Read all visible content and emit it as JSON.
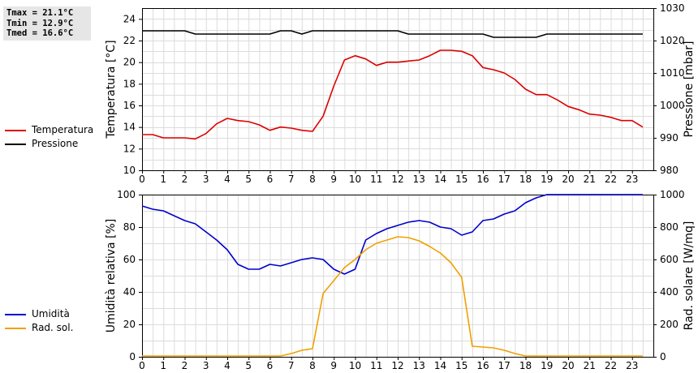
{
  "stats": {
    "tmax": "Tmax = 21.1°C",
    "tmin": "Tmin = 12.9°C",
    "tmed": "Tmed = 16.6°C"
  },
  "legend_top": [
    {
      "label": "Temperatura",
      "color": "#dd0000"
    },
    {
      "label": "Pressione",
      "color": "#000000"
    }
  ],
  "legend_bottom": [
    {
      "label": "Umidità",
      "color": "#0000cc"
    },
    {
      "label": "Rad. sol.",
      "color": "#f0a000"
    }
  ],
  "chart_data": [
    {
      "type": "line",
      "ylabel": "Temperatura [°C]",
      "y2label": "Pressione [mbar]",
      "xlim": [
        0,
        24
      ],
      "ylim": [
        10,
        25
      ],
      "y2lim": [
        980,
        1030
      ],
      "xticks": [
        "0",
        "1",
        "2",
        "3",
        "4",
        "5",
        "6",
        "7",
        "8",
        "9",
        "10",
        "11",
        "12",
        "13",
        "14",
        "15",
        "16",
        "17",
        "18",
        "19",
        "20",
        "21",
        "22",
        "23"
      ],
      "yticks": [
        "10",
        "12",
        "14",
        "16",
        "18",
        "20",
        "22",
        "24"
      ],
      "y2ticks": [
        "980",
        "990",
        "1000",
        "1010",
        "1020",
        "1030"
      ],
      "grid": true,
      "series": [
        {
          "name": "Temperatura",
          "axis": "left",
          "color": "#dd0000",
          "x": [
            0,
            0.5,
            1,
            1.5,
            2,
            2.5,
            3,
            3.5,
            4,
            4.5,
            5,
            5.5,
            6,
            6.5,
            7,
            7.5,
            8,
            8.5,
            9,
            9.5,
            10,
            10.5,
            11,
            11.5,
            12,
            12.5,
            13,
            13.5,
            14,
            14.5,
            15,
            15.5,
            16,
            16.5,
            17,
            17.5,
            18,
            18.5,
            19,
            19.5,
            20,
            20.5,
            21,
            21.5,
            22,
            22.5,
            23,
            23.5
          ],
          "y": [
            13.3,
            13.3,
            13.0,
            13.0,
            13.0,
            12.9,
            13.4,
            14.3,
            14.8,
            14.6,
            14.5,
            14.2,
            13.7,
            14.0,
            13.9,
            13.7,
            13.6,
            15.0,
            17.8,
            20.2,
            20.6,
            20.3,
            19.7,
            20.0,
            20.0,
            20.1,
            20.2,
            20.6,
            21.1,
            21.1,
            21.0,
            20.6,
            19.5,
            19.3,
            19.0,
            18.4,
            17.5,
            17.0,
            17.0,
            16.5,
            15.9,
            15.6,
            15.2,
            15.1,
            14.9,
            14.6,
            14.6,
            14.0
          ]
        },
        {
          "name": "Pressione",
          "axis": "right",
          "color": "#000000",
          "x": [
            0,
            1,
            2,
            2.5,
            3,
            4,
            5,
            6,
            6.5,
            7,
            7.5,
            8,
            9,
            10,
            11,
            12,
            12.5,
            13,
            14,
            15,
            16,
            16.5,
            17,
            18,
            18.5,
            19,
            20,
            21,
            22,
            23,
            23.5
          ],
          "y": [
            1023,
            1023,
            1023,
            1022,
            1022,
            1022,
            1022,
            1022,
            1023,
            1023,
            1022,
            1023,
            1023,
            1023,
            1023,
            1023,
            1022,
            1022,
            1022,
            1022,
            1022,
            1021,
            1021,
            1021,
            1021,
            1022,
            1022,
            1022,
            1022,
            1022,
            1022
          ]
        }
      ]
    },
    {
      "type": "line",
      "ylabel": "Umidità relativa [%]",
      "y2label": "Rad. solare [W/mq]",
      "xlim": [
        0,
        24
      ],
      "ylim": [
        0,
        100
      ],
      "y2lim": [
        0,
        1000
      ],
      "xticks": [
        "0",
        "1",
        "2",
        "3",
        "4",
        "5",
        "6",
        "7",
        "8",
        "9",
        "10",
        "11",
        "12",
        "13",
        "14",
        "15",
        "16",
        "17",
        "18",
        "19",
        "20",
        "21",
        "22",
        "23"
      ],
      "yticks": [
        "0",
        "20",
        "40",
        "60",
        "80",
        "100"
      ],
      "y2ticks": [
        "0",
        "200",
        "400",
        "600",
        "800",
        "1000"
      ],
      "grid": true,
      "series": [
        {
          "name": "Umidità",
          "axis": "left",
          "color": "#0000cc",
          "x": [
            0,
            0.5,
            1,
            1.5,
            2,
            2.5,
            3,
            3.5,
            4,
            4.5,
            5,
            5.5,
            6,
            6.5,
            7,
            7.5,
            8,
            8.5,
            9,
            9.5,
            10,
            10.5,
            11,
            11.5,
            12,
            12.5,
            13,
            13.5,
            14,
            14.5,
            15,
            15.5,
            16,
            16.5,
            17,
            17.5,
            18,
            18.5,
            19,
            19.5,
            20,
            21,
            22,
            23,
            23.5
          ],
          "y": [
            93,
            91,
            90,
            87,
            84,
            82,
            77,
            72,
            66,
            57,
            54,
            54,
            57,
            56,
            58,
            60,
            61,
            60,
            54,
            51,
            54,
            72,
            76,
            79,
            81,
            83,
            84,
            83,
            80,
            79,
            75,
            77,
            84,
            85,
            88,
            90,
            95,
            98,
            100,
            100,
            100,
            100,
            100,
            100,
            100
          ]
        },
        {
          "name": "Rad. sol.",
          "axis": "right",
          "color": "#f0a000",
          "x": [
            0,
            1,
            2,
            3,
            4,
            5,
            6,
            6.5,
            7,
            7.5,
            8,
            8.5,
            9,
            9.5,
            10,
            10.5,
            11,
            11.5,
            12,
            12.5,
            13,
            13.5,
            14,
            14.5,
            15,
            15.5,
            16,
            16.5,
            17,
            17.5,
            18,
            18.5,
            19,
            20,
            21,
            22,
            23,
            23.5
          ],
          "y": [
            5,
            5,
            5,
            5,
            5,
            5,
            5,
            5,
            20,
            40,
            50,
            390,
            470,
            550,
            600,
            660,
            700,
            720,
            740,
            735,
            715,
            680,
            640,
            580,
            490,
            65,
            60,
            55,
            40,
            20,
            5,
            5,
            5,
            5,
            5,
            5,
            5,
            5
          ]
        }
      ]
    }
  ]
}
